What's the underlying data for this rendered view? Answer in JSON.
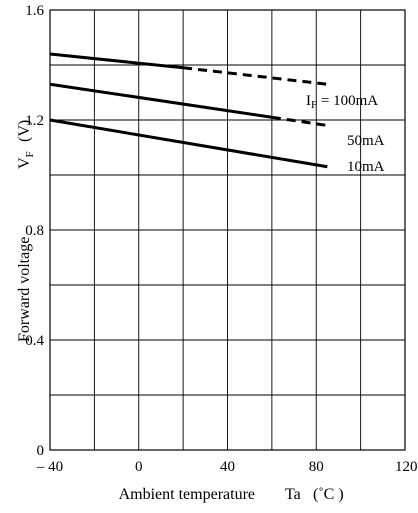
{
  "chart_data": {
    "type": "line",
    "xlabel": "Ambient temperature",
    "xlabel_symbol": "Ta",
    "xlabel_unit": "(˚C )",
    "ylabel": "Forward voltage",
    "ylabel_symbol": "V",
    "ylabel_symbol_sub": "F",
    "ylabel_unit": "(V)",
    "xlim": [
      -40,
      120
    ],
    "ylim": [
      0,
      1.6
    ],
    "x_ticks": [
      -40,
      0,
      40,
      80,
      120
    ],
    "x_tick_labels": [
      "– 40",
      "0",
      "40",
      "80",
      "120"
    ],
    "y_ticks": [
      0,
      0.4,
      0.8,
      1.2,
      1.6
    ],
    "y_tick_labels": [
      "0",
      "0.4",
      "0.8",
      "1.2",
      "1.6"
    ],
    "x_grid_step": 20,
    "y_grid_step": 0.2,
    "grid": true,
    "series": [
      {
        "name": "I",
        "name_sub": "F",
        "name_suffix": " = 100mA",
        "solid": {
          "x": [
            -40,
            20
          ],
          "y": [
            1.44,
            1.39
          ]
        },
        "dashed": {
          "x": [
            20,
            85
          ],
          "y": [
            1.39,
            1.33
          ]
        }
      },
      {
        "name": "50mA",
        "solid": {
          "x": [
            -40,
            60
          ],
          "y": [
            1.33,
            1.21
          ]
        },
        "dashed": {
          "x": [
            60,
            85
          ],
          "y": [
            1.21,
            1.18
          ]
        }
      },
      {
        "name": "10mA",
        "solid": {
          "x": [
            -40,
            85
          ],
          "y": [
            1.2,
            1.03
          ]
        },
        "dashed": null
      }
    ]
  }
}
